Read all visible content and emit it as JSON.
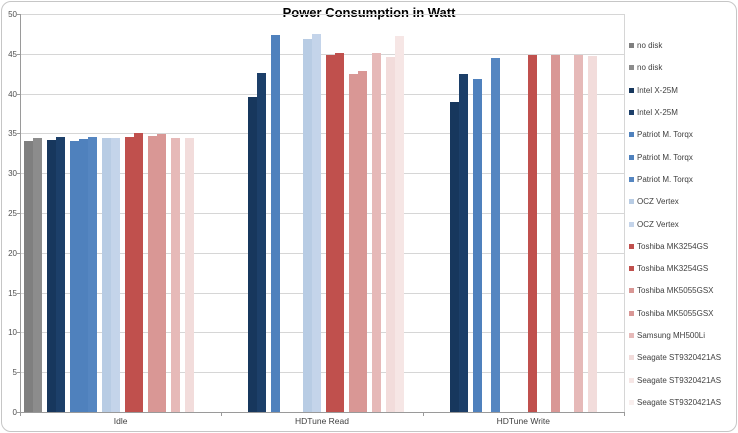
{
  "chart_data": {
    "type": "bar",
    "title": "Power Consumption in Watt",
    "xlabel": "",
    "ylabel": "",
    "ylim": [
      0,
      50
    ],
    "yticks": [
      0,
      5,
      10,
      15,
      20,
      25,
      30,
      35,
      40,
      45,
      50
    ],
    "grid": true,
    "legend_position": "right",
    "categories": [
      "Idle",
      "HDTune Read",
      "HDTune Write"
    ],
    "group_sizes": [
      2,
      2,
      3,
      2,
      2,
      2,
      1,
      3
    ],
    "series": [
      {
        "name": "no disk",
        "color": "#7f7f7f",
        "values": [
          34.1,
          null,
          null
        ]
      },
      {
        "name": "no disk",
        "color": "#8c8c8c",
        "values": [
          34.4,
          null,
          null
        ]
      },
      {
        "name": "Intel X-25M",
        "color": "#17375d",
        "values": [
          34.2,
          39.6,
          39.0
        ]
      },
      {
        "name": "Intel X-25M",
        "color": "#1c3f69",
        "values": [
          34.6,
          42.6,
          42.5
        ]
      },
      {
        "name": "Patriot M. Torqx",
        "color": "#4f81bd",
        "values": [
          34.1,
          47.4,
          41.9
        ]
      },
      {
        "name": "Patriot M. Torqx",
        "color": "#4f81bd",
        "values": [
          34.3,
          null,
          null
        ]
      },
      {
        "name": "Patriot M. Torqx",
        "color": "#5586c1",
        "values": [
          34.5,
          null,
          44.5
        ]
      },
      {
        "name": "OCZ Vertex",
        "color": "#b8cce4",
        "values": [
          34.4,
          46.9,
          null
        ]
      },
      {
        "name": "OCZ Vertex",
        "color": "#c4d4ea",
        "values": [
          34.4,
          47.5,
          null
        ]
      },
      {
        "name": "Toshiba MK3254GS",
        "color": "#c0504d",
        "values": [
          34.6,
          44.9,
          44.8
        ]
      },
      {
        "name": "Toshiba MK3254GS",
        "color": "#c0504d",
        "values": [
          35.0,
          45.1,
          null
        ]
      },
      {
        "name": "Toshiba MK5055GSX",
        "color": "#d99795",
        "values": [
          34.7,
          42.5,
          44.9
        ]
      },
      {
        "name": "Toshiba MK5055GSX",
        "color": "#d99795",
        "values": [
          34.9,
          42.8,
          null
        ]
      },
      {
        "name": "Samsung MH500Li",
        "color": "#e6b9b8",
        "values": [
          34.4,
          45.1,
          44.8
        ]
      },
      {
        "name": "Seagate ST9320421AS",
        "color": "#f2dcdb",
        "values": [
          34.4,
          44.6,
          44.7
        ]
      },
      {
        "name": "Seagate ST9320421AS",
        "color": "#f6e6e5",
        "values": [
          null,
          47.2,
          null
        ]
      },
      {
        "name": "Seagate ST9320421AS",
        "color": "#f9efee",
        "values": [
          null,
          null,
          null
        ]
      }
    ]
  },
  "colors": {
    "grid": "#d6d6d6",
    "axis": "#9a9a9a",
    "text": "#3f3f3f",
    "border": "#c6c6c6",
    "background": "#ffffff"
  }
}
